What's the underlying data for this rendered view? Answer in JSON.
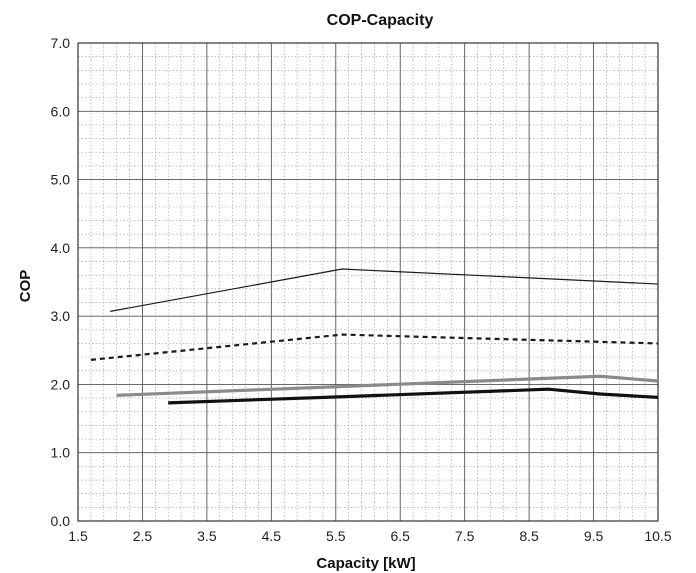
{
  "chart_data": {
    "type": "line",
    "title": "COP-Capacity",
    "xlabel": "Capacity [kW]",
    "ylabel": "COP",
    "xlim": [
      1.5,
      10.5
    ],
    "ylim": [
      0.0,
      7.0
    ],
    "x_ticks": [
      "1.5",
      "2.5",
      "3.5",
      "4.5",
      "5.5",
      "6.5",
      "7.5",
      "8.5",
      "9.5",
      "10.5"
    ],
    "y_ticks": [
      "0.0",
      "1.0",
      "2.0",
      "3.0",
      "4.0",
      "5.0",
      "6.0",
      "7.0"
    ],
    "grid": true,
    "minor_grid": "dotted",
    "legend": "none",
    "series": [
      {
        "style": "thin-solid",
        "color": "#1a1a1a",
        "points": [
          [
            2.0,
            3.07
          ],
          [
            5.6,
            3.69
          ],
          [
            10.5,
            3.47
          ]
        ]
      },
      {
        "style": "dashed",
        "color": "#1a1a1a",
        "points": [
          [
            1.7,
            2.36
          ],
          [
            5.6,
            2.73
          ],
          [
            10.5,
            2.6
          ]
        ]
      },
      {
        "style": "thick-gray",
        "color": "#8a8a8a",
        "points": [
          [
            2.1,
            1.84
          ],
          [
            5.6,
            1.97
          ],
          [
            9.6,
            2.12
          ],
          [
            10.5,
            2.05
          ]
        ]
      },
      {
        "style": "thick-black",
        "color": "#111111",
        "points": [
          [
            2.9,
            1.73
          ],
          [
            5.6,
            1.82
          ],
          [
            8.8,
            1.93
          ],
          [
            9.6,
            1.86
          ],
          [
            10.5,
            1.81
          ]
        ]
      }
    ]
  }
}
